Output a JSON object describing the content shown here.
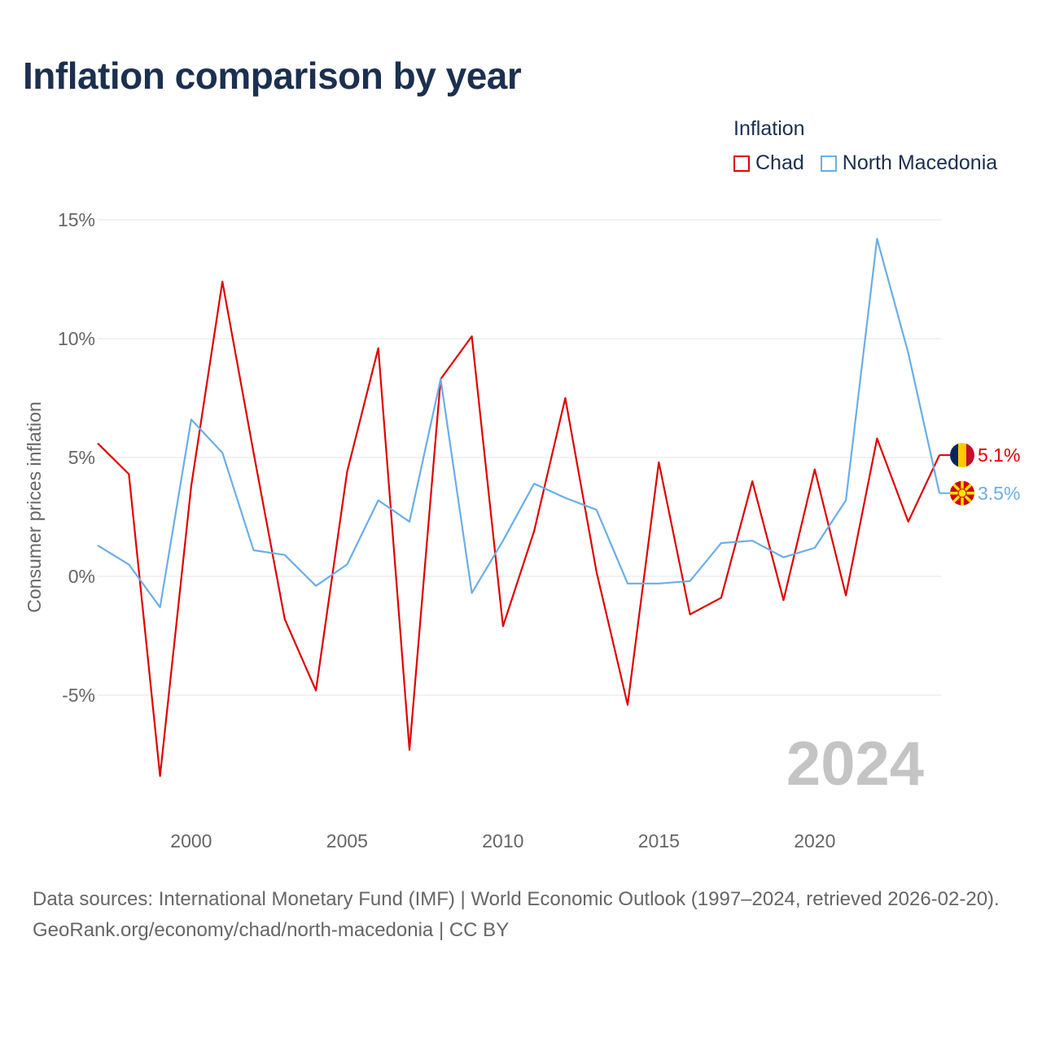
{
  "title": "Inflation comparison by year",
  "legend": {
    "title": "Inflation",
    "items": [
      {
        "name": "Chad",
        "color": "#e00000"
      },
      {
        "name": "North Macedonia",
        "color": "#6aaee8"
      }
    ]
  },
  "watermark_year": "2024",
  "footer": {
    "sources": "Data sources: International Monetary Fund (IMF) | World Economic Outlook (1997–2024, retrieved 2026-02-20).",
    "credit": "GeoRank.org/economy/chad/north-macedonia | CC BY"
  },
  "chart_data": {
    "type": "line",
    "title": "Inflation comparison by year",
    "xlabel": "",
    "ylabel": "Consumer prices inflation",
    "x": [
      1997,
      1998,
      1999,
      2000,
      2001,
      2002,
      2003,
      2004,
      2005,
      2006,
      2007,
      2008,
      2009,
      2010,
      2011,
      2012,
      2013,
      2014,
      2015,
      2016,
      2017,
      2018,
      2019,
      2020,
      2021,
      2022,
      2023,
      2024
    ],
    "xlim": [
      1997,
      2024
    ],
    "ylim": [
      -8.5,
      16
    ],
    "x_ticks": [
      2000,
      2005,
      2010,
      2015,
      2020
    ],
    "y_ticks": [
      -5,
      0,
      5,
      10,
      15
    ],
    "y_tick_labels": [
      "-5%",
      "0%",
      "5%",
      "10%",
      "15%"
    ],
    "grid": true,
    "legend_position": "top-right",
    "series": [
      {
        "name": "Chad",
        "color": "#e00000",
        "values": [
          5.6,
          4.3,
          -8.4,
          3.8,
          12.4,
          5.2,
          -1.8,
          -4.8,
          4.4,
          9.6,
          -7.3,
          8.3,
          10.1,
          -2.1,
          1.9,
          7.5,
          0.2,
          -5.4,
          4.8,
          -1.6,
          -0.9,
          4.0,
          -1.0,
          4.5,
          -0.8,
          5.8,
          2.3,
          5.1
        ],
        "end_label": "5.1%"
      },
      {
        "name": "North Macedonia",
        "color": "#6aaee8",
        "values": [
          1.3,
          0.5,
          -1.3,
          6.6,
          5.2,
          1.1,
          0.9,
          -0.4,
          0.5,
          3.2,
          2.3,
          8.3,
          -0.7,
          1.5,
          3.9,
          3.3,
          2.8,
          -0.3,
          -0.3,
          -0.2,
          1.4,
          1.5,
          0.8,
          1.2,
          3.2,
          14.2,
          9.4,
          3.5
        ],
        "end_label": "3.5%"
      }
    ]
  }
}
